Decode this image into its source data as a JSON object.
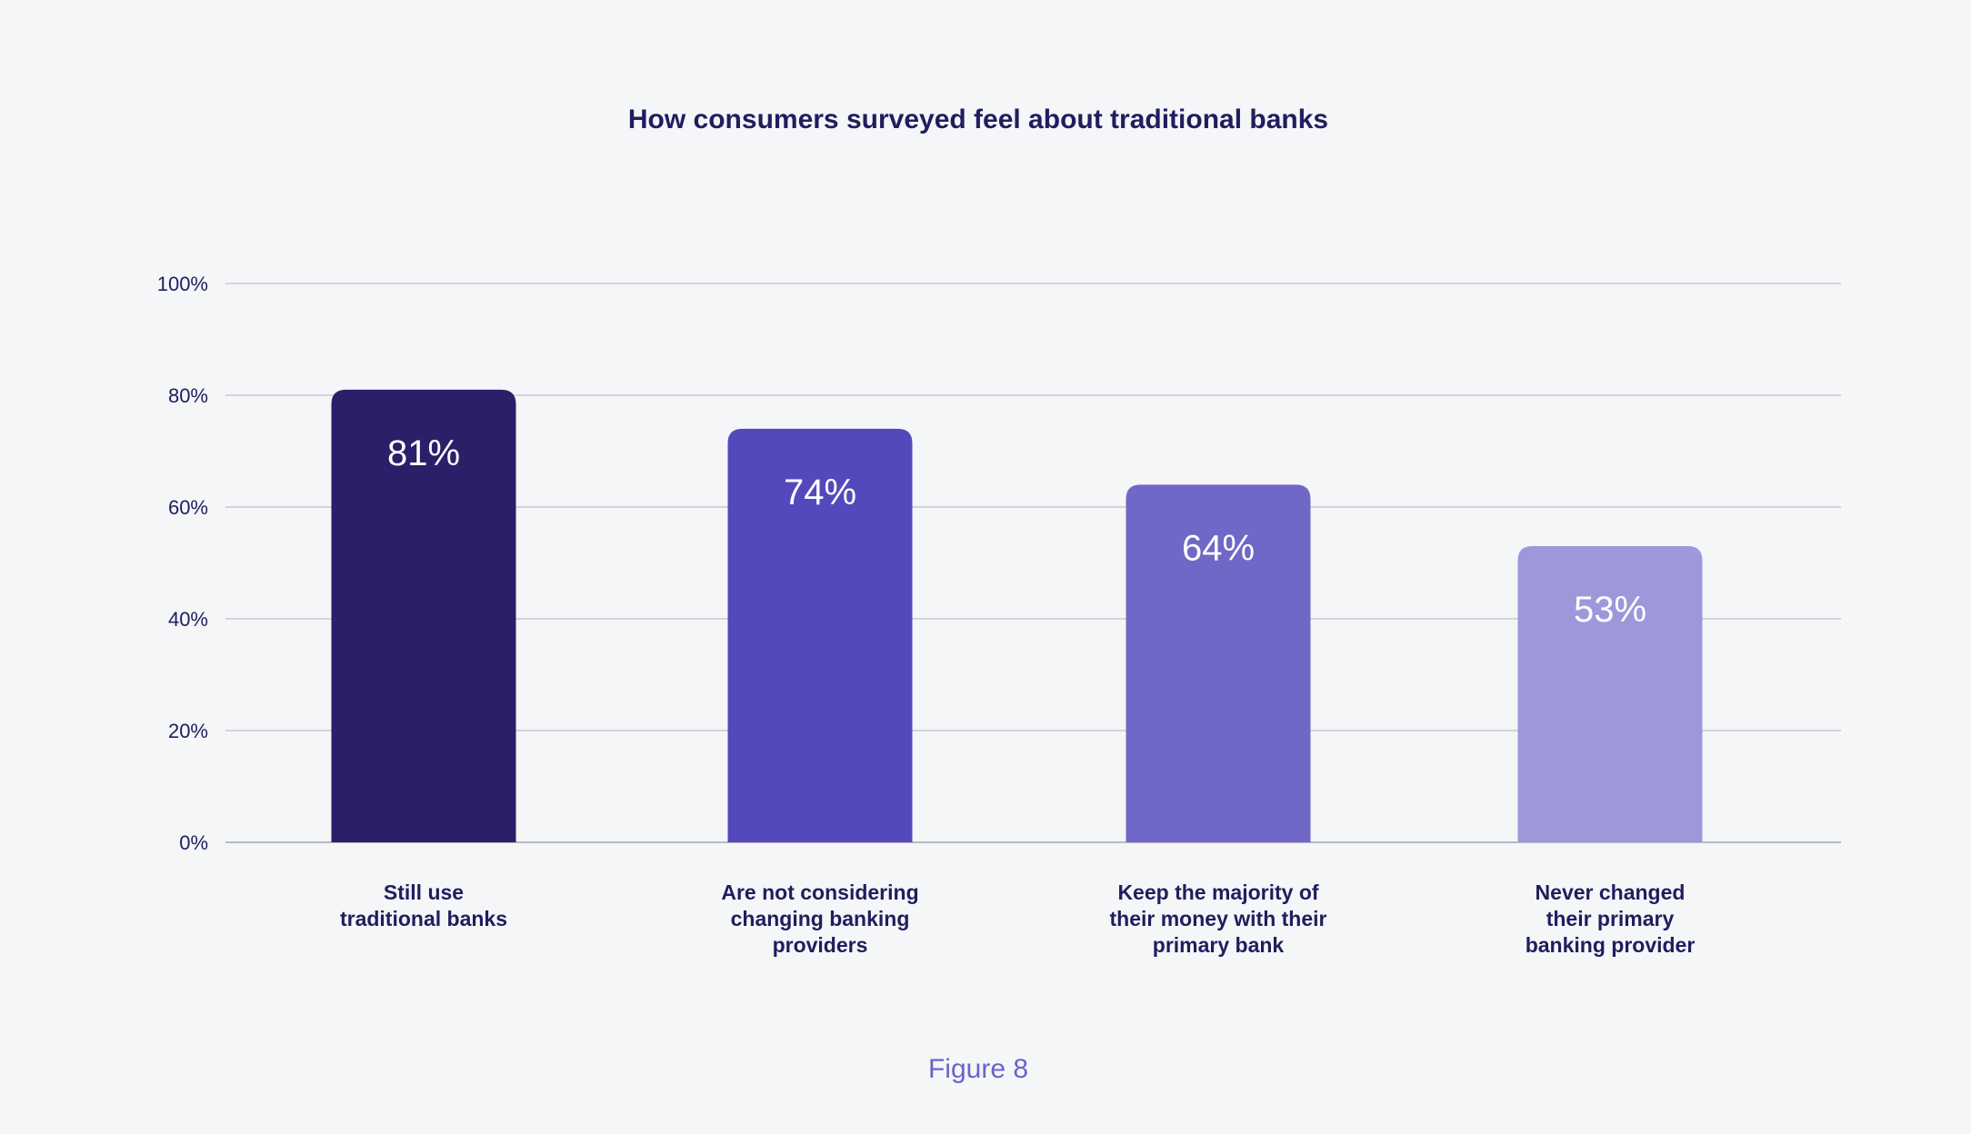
{
  "chart_data": {
    "type": "bar",
    "title": "How consumers surveyed feel about traditional banks",
    "categories": [
      [
        "Still use",
        "traditional banks"
      ],
      [
        "Are not considering",
        "changing banking",
        "providers"
      ],
      [
        "Keep the majority of",
        "their money with their",
        "primary bank"
      ],
      [
        "Never changed",
        "their primary",
        "banking provider"
      ]
    ],
    "values": [
      81,
      74,
      64,
      53
    ],
    "value_labels": [
      "81%",
      "74%",
      "64%",
      "53%"
    ],
    "bar_colors": [
      "#2a1f68",
      "#5449bc",
      "#6f68c6",
      "#9d98da"
    ],
    "ylim": [
      0,
      100
    ],
    "yticks": [
      0,
      20,
      40,
      60,
      80,
      100
    ],
    "ytick_labels": [
      "0%",
      "20%",
      "40%",
      "60%",
      "80%",
      "100%"
    ],
    "grid": true,
    "xlabel": "",
    "ylabel": ""
  },
  "caption": "Figure 8"
}
